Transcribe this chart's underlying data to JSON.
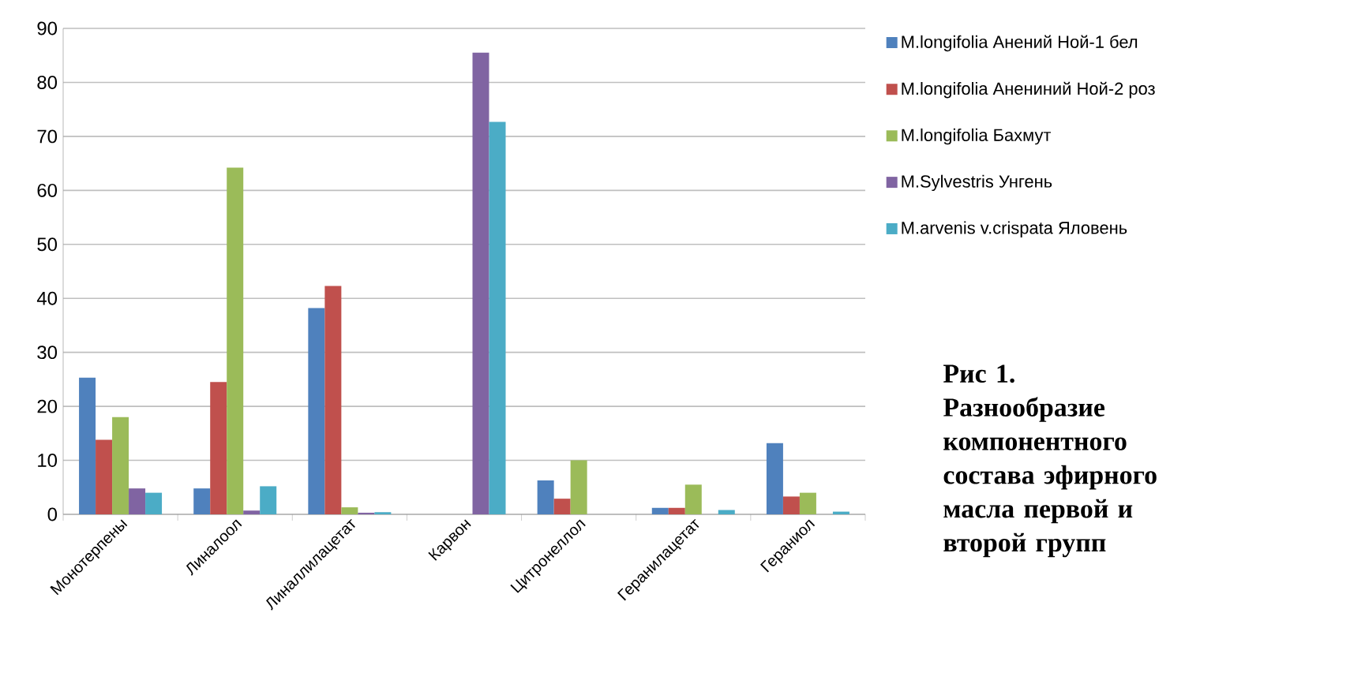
{
  "chart_data": {
    "type": "bar",
    "categories": [
      "Монотерпены",
      "Линалоол",
      "Линаллилацетат",
      "Карвон",
      "Цитронеллол",
      "Геранилацетат",
      "Гераниол"
    ],
    "series": [
      {
        "name": "M.longifolia Анений Ной-1 бел",
        "color": "#4f81bd",
        "values": [
          25.3,
          4.8,
          38.2,
          null,
          6.3,
          1.2,
          13.2
        ]
      },
      {
        "name": "M.longifolia Анениний Ной-2 роз",
        "color": "#c0504d",
        "values": [
          13.8,
          24.5,
          42.3,
          null,
          2.9,
          1.2,
          3.3
        ]
      },
      {
        "name": "M.longifolia Бахмут",
        "color": "#9bbb59",
        "values": [
          18,
          64.2,
          1.3,
          null,
          10,
          5.5,
          4
        ]
      },
      {
        "name": "M.Sylvestris Унгень",
        "color": "#8064a2",
        "values": [
          4.8,
          0.7,
          0.3,
          85.5,
          null,
          null,
          null
        ]
      },
      {
        "name": "M.arvenis  v.crispata Яловень",
        "color": "#4bacc6",
        "values": [
          4,
          5.2,
          0.4,
          72.7,
          null,
          0.8,
          0.5
        ]
      }
    ],
    "ylim": [
      0,
      90
    ],
    "yticks": [
      0,
      10,
      20,
      30,
      40,
      50,
      60,
      70,
      80,
      90
    ],
    "grid": "y",
    "legend": "right",
    "annotations": [
      "Рис 1. Разнообразие компонентного состава эфирного масла первой и второй групп"
    ]
  }
}
